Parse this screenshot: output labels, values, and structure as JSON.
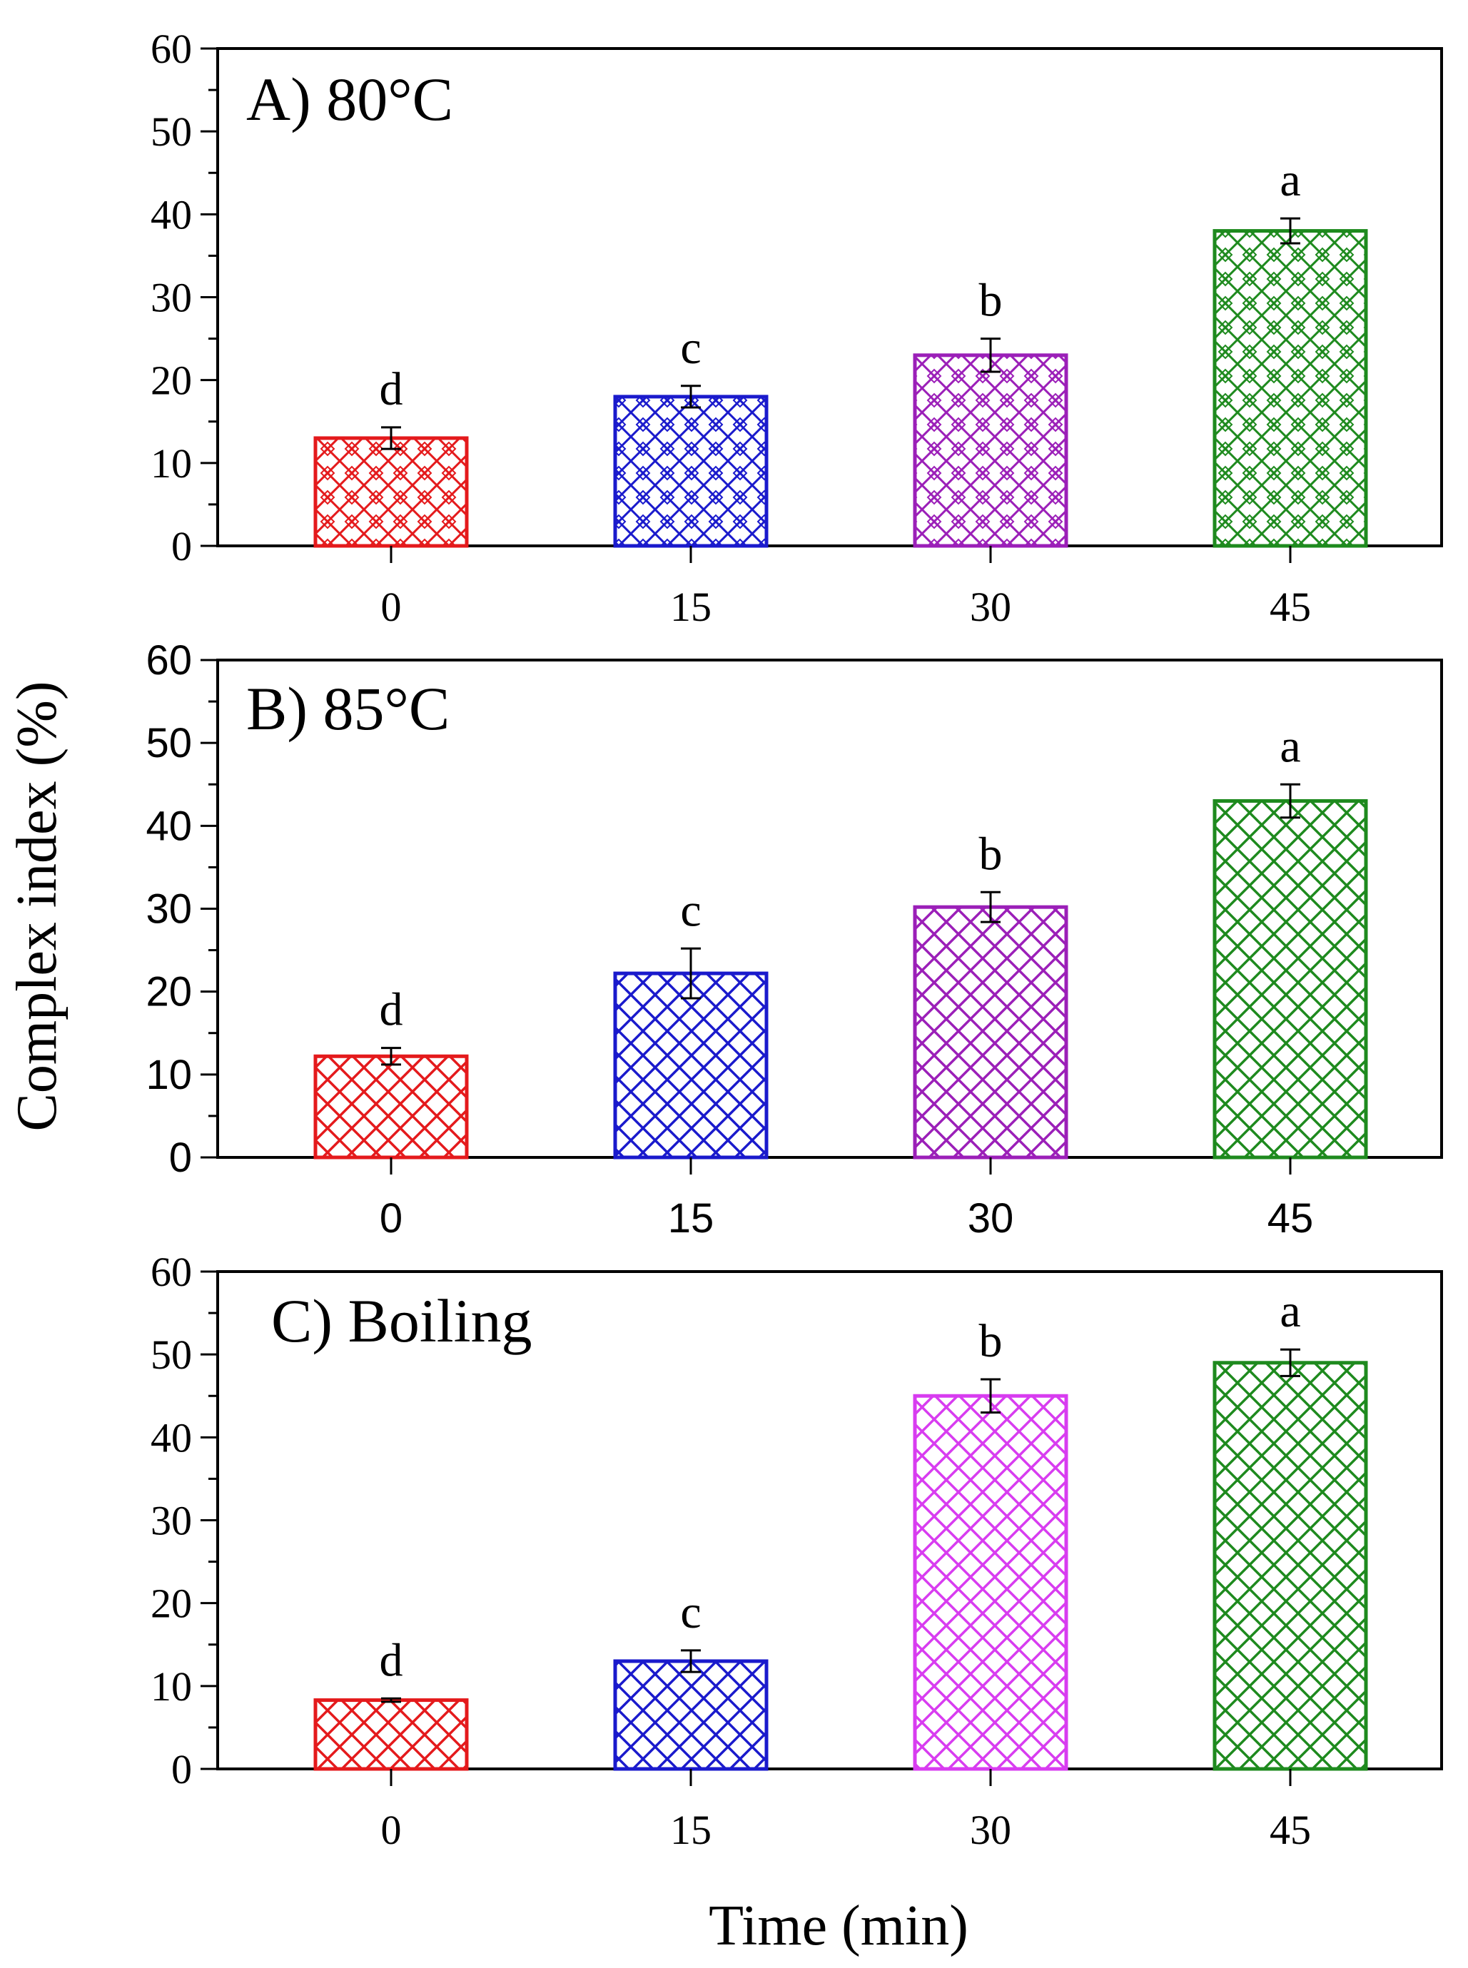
{
  "chart_data": [
    {
      "type": "bar",
      "title": "A) 80°C",
      "categories": [
        "0",
        "15",
        "30",
        "45"
      ],
      "values": [
        13,
        18,
        23,
        38
      ],
      "errors": [
        1.3,
        1.3,
        2.0,
        1.5
      ],
      "significance": [
        "d",
        "c",
        "b",
        "a"
      ],
      "colors": [
        "#e41a1c",
        "#1a1acc",
        "#9b1fb8",
        "#1e8a1e"
      ],
      "hatch": "diamond-lattice",
      "ylim": [
        0,
        60
      ],
      "yticks": [
        "0",
        "10",
        "20",
        "30",
        "40",
        "50",
        "60"
      ],
      "tick_font": "serif",
      "grid": false
    },
    {
      "type": "bar",
      "title": "B) 85°C",
      "categories": [
        "0",
        "15",
        "30",
        "45"
      ],
      "values": [
        12.2,
        22.2,
        30.2,
        43.0
      ],
      "errors": [
        1.0,
        3.0,
        1.8,
        2.0
      ],
      "significance": [
        "d",
        "c",
        "b",
        "a"
      ],
      "colors": [
        "#e41a1c",
        "#1a1acc",
        "#9b1fb8",
        "#1e8a1e"
      ],
      "hatch": "crosshatch",
      "ylim": [
        0,
        60
      ],
      "yticks": [
        "0",
        "10",
        "20",
        "30",
        "40",
        "50",
        "60"
      ],
      "tick_font": "sans",
      "grid": false
    },
    {
      "type": "bar",
      "title": "C) Boiling",
      "categories": [
        "0",
        "15",
        "30",
        "45"
      ],
      "values": [
        8.3,
        13.0,
        45.0,
        49.0
      ],
      "errors": [
        0.2,
        1.3,
        2.0,
        1.6
      ],
      "significance": [
        "d",
        "c",
        "b",
        "a"
      ],
      "colors": [
        "#e41a1c",
        "#1a1acc",
        "#d83cf0",
        "#1e8a1e"
      ],
      "hatch": "crosshatch",
      "ylim": [
        0,
        60
      ],
      "yticks": [
        "0",
        "10",
        "20",
        "30",
        "40",
        "50",
        "60"
      ],
      "tick_font": "serif",
      "grid": false
    }
  ],
  "axes": {
    "ylabel": "Complex index (%)",
    "xlabel": "Time (min)"
  }
}
